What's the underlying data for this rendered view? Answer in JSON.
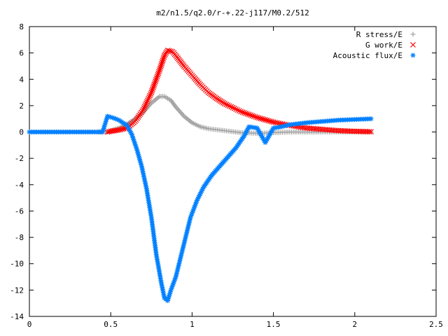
{
  "chart_data": {
    "type": "scatter",
    "title": "m2/n1.5/q2.0/r-+.22-j117/M0.2/512",
    "xlabel": "",
    "ylabel": "",
    "xlim": [
      0,
      2.5
    ],
    "ylim": [
      -14,
      8
    ],
    "x_ticks": [
      0,
      0.5,
      1,
      1.5,
      2,
      2.5
    ],
    "x_tick_labels": [
      "0",
      "0.5",
      "1",
      "1.5",
      "2",
      "2.5"
    ],
    "y_ticks": [
      -14,
      -12,
      -10,
      -8,
      -6,
      -4,
      -2,
      0,
      2,
      4,
      6,
      8
    ],
    "y_tick_labels": [
      "-14",
      "-12",
      "-10",
      "-8",
      "-6",
      "-4",
      "-2",
      "0",
      "2",
      "4",
      "6",
      "8"
    ],
    "grid": false,
    "legend_position": "top-right",
    "series": [
      {
        "name": "R stress/E",
        "marker": "plus",
        "color": "#a0a0a0",
        "points": [
          [
            0.0,
            0.0
          ],
          [
            0.1,
            0.0
          ],
          [
            0.2,
            0.0
          ],
          [
            0.3,
            0.0
          ],
          [
            0.4,
            0.0
          ],
          [
            0.48,
            0.02
          ],
          [
            0.5,
            0.1
          ],
          [
            0.55,
            0.3
          ],
          [
            0.6,
            0.6
          ],
          [
            0.65,
            1.0
          ],
          [
            0.7,
            1.5
          ],
          [
            0.75,
            2.2
          ],
          [
            0.8,
            2.7
          ],
          [
            0.83,
            2.7
          ],
          [
            0.87,
            2.4
          ],
          [
            0.9,
            1.9
          ],
          [
            0.95,
            1.2
          ],
          [
            1.0,
            0.7
          ],
          [
            1.05,
            0.4
          ],
          [
            1.1,
            0.25
          ],
          [
            1.2,
            0.1
          ],
          [
            1.3,
            -0.05
          ],
          [
            1.4,
            -0.1
          ],
          [
            1.5,
            -0.05
          ],
          [
            1.6,
            0.0
          ],
          [
            1.7,
            0.0
          ],
          [
            1.8,
            0.0
          ],
          [
            1.9,
            0.0
          ],
          [
            2.0,
            0.0
          ],
          [
            2.1,
            0.0
          ]
        ]
      },
      {
        "name": "G work/E",
        "marker": "cross",
        "color": "#ff0000",
        "points": [
          [
            0.48,
            0.0
          ],
          [
            0.5,
            0.05
          ],
          [
            0.55,
            0.15
          ],
          [
            0.6,
            0.3
          ],
          [
            0.65,
            0.8
          ],
          [
            0.7,
            1.7
          ],
          [
            0.75,
            3.0
          ],
          [
            0.8,
            4.7
          ],
          [
            0.83,
            5.8
          ],
          [
            0.85,
            6.2
          ],
          [
            0.88,
            6.1
          ],
          [
            0.9,
            5.8
          ],
          [
            0.95,
            5.0
          ],
          [
            1.0,
            4.3
          ],
          [
            1.05,
            3.6
          ],
          [
            1.1,
            3.0
          ],
          [
            1.15,
            2.55
          ],
          [
            1.2,
            2.15
          ],
          [
            1.3,
            1.55
          ],
          [
            1.4,
            1.1
          ],
          [
            1.5,
            0.75
          ],
          [
            1.6,
            0.5
          ],
          [
            1.7,
            0.3
          ],
          [
            1.8,
            0.2
          ],
          [
            1.9,
            0.1
          ],
          [
            2.0,
            0.05
          ],
          [
            2.1,
            0.02
          ]
        ]
      },
      {
        "name": "Acoustic flux/E",
        "marker": "star",
        "color": "#0080ff",
        "points": [
          [
            0.0,
            0.0
          ],
          [
            0.1,
            0.0
          ],
          [
            0.2,
            0.0
          ],
          [
            0.3,
            0.0
          ],
          [
            0.4,
            0.0
          ],
          [
            0.45,
            0.0
          ],
          [
            0.48,
            1.2
          ],
          [
            0.52,
            1.05
          ],
          [
            0.55,
            0.9
          ],
          [
            0.6,
            0.5
          ],
          [
            0.63,
            -0.2
          ],
          [
            0.66,
            -1.3
          ],
          [
            0.69,
            -2.6
          ],
          [
            0.72,
            -4.3
          ],
          [
            0.75,
            -6.5
          ],
          [
            0.78,
            -9.3
          ],
          [
            0.81,
            -11.4
          ],
          [
            0.83,
            -12.6
          ],
          [
            0.85,
            -12.8
          ],
          [
            0.87,
            -12.0
          ],
          [
            0.9,
            -11.0
          ],
          [
            0.93,
            -9.5
          ],
          [
            0.96,
            -8.0
          ],
          [
            0.99,
            -6.5
          ],
          [
            1.03,
            -5.2
          ],
          [
            1.07,
            -4.2
          ],
          [
            1.12,
            -3.3
          ],
          [
            1.17,
            -2.6
          ],
          [
            1.22,
            -1.9
          ],
          [
            1.27,
            -1.2
          ],
          [
            1.32,
            -0.3
          ],
          [
            1.35,
            0.4
          ],
          [
            1.4,
            0.3
          ],
          [
            1.45,
            -0.8
          ],
          [
            1.5,
            0.3
          ],
          [
            1.55,
            0.4
          ],
          [
            1.6,
            0.55
          ],
          [
            1.7,
            0.7
          ],
          [
            1.8,
            0.8
          ],
          [
            1.9,
            0.9
          ],
          [
            2.0,
            0.95
          ],
          [
            2.1,
            1.0
          ]
        ]
      }
    ]
  }
}
